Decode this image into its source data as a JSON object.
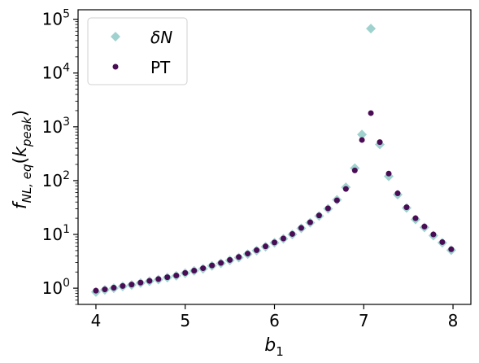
{
  "chart_data": {
    "type": "scatter",
    "xlabel": "b",
    "xlabel_sub": "1",
    "ylabel_main": "f",
    "ylabel_sub": "NL, eq",
    "ylabel_arg": "k",
    "ylabel_arg_sub": "peak",
    "xlim": [
      3.8,
      8.2
    ],
    "ylim": [
      0.5,
      150000
    ],
    "yscale": "log",
    "x_ticks": [
      4,
      5,
      6,
      7,
      8
    ],
    "x_tick_labels": [
      "4",
      "5",
      "6",
      "7",
      "8"
    ],
    "y_ticks": [
      1,
      10,
      100,
      1000,
      10000,
      100000
    ],
    "y_tick_bases": [
      "10",
      "10",
      "10",
      "10",
      "10",
      "10"
    ],
    "y_tick_exps": [
      "0",
      "1",
      "2",
      "3",
      "4",
      "5"
    ],
    "grid": false,
    "legend_position": "top-left",
    "series": [
      {
        "name": "δN",
        "marker": "diamond",
        "color": "#9ad0cb",
        "x": [
          4.0,
          4.1,
          4.2,
          4.3,
          4.4,
          4.5,
          4.6,
          4.7,
          4.8,
          4.9,
          5.0,
          5.1,
          5.2,
          5.3,
          5.4,
          5.5,
          5.6,
          5.7,
          5.8,
          5.9,
          6.0,
          6.1,
          6.2,
          6.3,
          6.4,
          6.5,
          6.6,
          6.7,
          6.8,
          6.9,
          6.98,
          7.08,
          7.18,
          7.28,
          7.38,
          7.48,
          7.58,
          7.68,
          7.78,
          7.88,
          7.98
        ],
        "y": [
          0.85,
          0.93,
          1.0,
          1.08,
          1.15,
          1.25,
          1.35,
          1.45,
          1.58,
          1.7,
          1.9,
          2.1,
          2.3,
          2.6,
          2.9,
          3.3,
          3.7,
          4.3,
          5.0,
          5.9,
          7.0,
          8.3,
          10.0,
          13.0,
          16.5,
          22.0,
          30.0,
          44.0,
          75.0,
          170.0,
          720.0,
          67000.0,
          470.0,
          120.0,
          55.0,
          31.0,
          19.0,
          13.5,
          9.5,
          7.0,
          5.1
        ]
      },
      {
        "name": "PT",
        "marker": "circle",
        "color": "#4a0d55",
        "x": [
          4.0,
          4.1,
          4.2,
          4.3,
          4.4,
          4.5,
          4.6,
          4.7,
          4.8,
          4.9,
          5.0,
          5.1,
          5.2,
          5.3,
          5.4,
          5.5,
          5.6,
          5.7,
          5.8,
          5.9,
          6.0,
          6.1,
          6.2,
          6.3,
          6.4,
          6.5,
          6.6,
          6.7,
          6.8,
          6.9,
          6.98,
          7.08,
          7.18,
          7.28,
          7.38,
          7.48,
          7.58,
          7.68,
          7.78,
          7.88,
          7.98
        ],
        "y": [
          0.9,
          0.95,
          1.02,
          1.1,
          1.17,
          1.27,
          1.37,
          1.48,
          1.6,
          1.72,
          1.92,
          2.12,
          2.35,
          2.65,
          2.95,
          3.35,
          3.8,
          4.4,
          5.1,
          6.0,
          7.1,
          8.4,
          10.2,
          13.2,
          16.8,
          22.5,
          30.5,
          43.0,
          70.0,
          155.0,
          570.0,
          1800.0,
          520.0,
          135.0,
          58.0,
          32.0,
          20.0,
          14.0,
          10.0,
          7.2,
          5.3
        ]
      }
    ]
  }
}
